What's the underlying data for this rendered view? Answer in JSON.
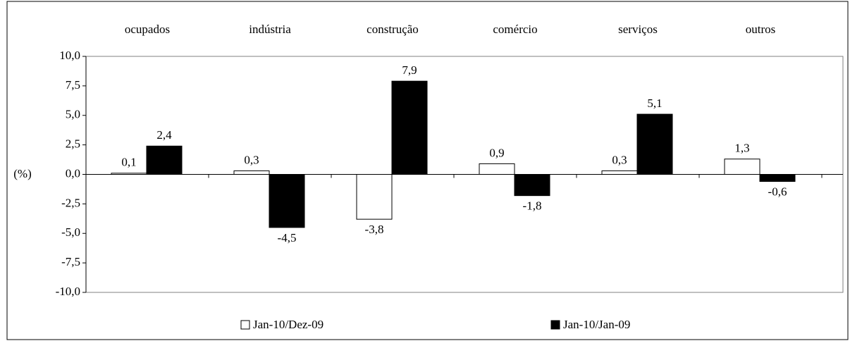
{
  "chart_data": {
    "type": "bar",
    "y_label": "(%)",
    "categories": [
      "ocupados",
      "indústria",
      "construção",
      "comércio",
      "serviços",
      "outros"
    ],
    "series": [
      {
        "name": "Jan-10/Dez-09",
        "color": "#ffffff",
        "values": [
          0.1,
          0.3,
          -3.8,
          0.9,
          0.3,
          1.3
        ],
        "value_labels": [
          "0,1",
          "0,3",
          "-3,8",
          "0,9",
          "0,3",
          "1,3"
        ]
      },
      {
        "name": "Jan-10/Jan-09",
        "color": "#000000",
        "values": [
          2.4,
          -4.5,
          7.9,
          -1.8,
          5.1,
          -0.6
        ],
        "value_labels": [
          "2,4",
          "-4,5",
          "7,9",
          "-1,8",
          "5,1",
          "-0,6"
        ]
      }
    ],
    "ylim": [
      -10,
      10
    ],
    "yticks": [
      {
        "value": -10,
        "label": "-10,0"
      },
      {
        "value": -7.5,
        "label": "-7,5"
      },
      {
        "value": -5,
        "label": "-5,0"
      },
      {
        "value": -2.5,
        "label": "-2,5"
      },
      {
        "value": 0,
        "label": "0,0"
      },
      {
        "value": 2.5,
        "label": "2,5"
      },
      {
        "value": 5,
        "label": "5,0"
      },
      {
        "value": 7.5,
        "label": "7,5"
      },
      {
        "value": 10,
        "label": "10,0"
      }
    ]
  }
}
